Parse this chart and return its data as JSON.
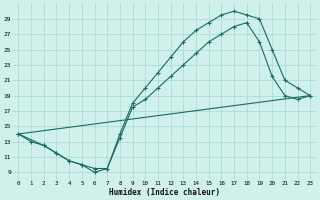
{
  "xlabel": "Humidex (Indice chaleur)",
  "bg_color": "#cff0eb",
  "grid_color": "#a8d8d0",
  "line_color": "#1a6b60",
  "xlim": [
    -0.5,
    23.5
  ],
  "ylim": [
    8.0,
    31.0
  ],
  "xticks": [
    0,
    1,
    2,
    3,
    4,
    5,
    6,
    7,
    8,
    9,
    10,
    11,
    12,
    13,
    14,
    15,
    16,
    17,
    18,
    19,
    20,
    21,
    22,
    23
  ],
  "yticks": [
    9,
    11,
    13,
    15,
    17,
    19,
    21,
    23,
    25,
    27,
    29
  ],
  "line1_x": [
    0,
    1,
    2,
    3,
    4,
    5,
    6,
    7,
    8,
    9,
    10,
    11,
    12,
    13,
    14,
    15,
    16,
    17,
    18,
    19,
    20,
    21,
    22,
    23
  ],
  "line1_y": [
    14,
    13,
    12.5,
    11.5,
    10.5,
    10,
    9,
    9.5,
    14,
    18,
    20,
    22,
    24,
    26,
    27.5,
    28.5,
    29.5,
    30,
    29.5,
    29,
    25,
    21,
    20,
    19
  ],
  "line2_x": [
    0,
    2,
    3,
    4,
    5,
    6,
    7,
    8,
    9,
    10,
    11,
    12,
    13,
    14,
    15,
    16,
    17,
    18,
    19,
    20,
    21,
    22,
    23
  ],
  "line2_y": [
    14,
    12.5,
    11.5,
    10.5,
    10,
    9.5,
    9.5,
    13.5,
    17.5,
    18.5,
    20,
    21.5,
    23,
    24.5,
    26,
    27,
    28,
    28.5,
    26,
    21.5,
    19,
    18.5,
    19
  ],
  "line3_x": [
    0,
    23
  ],
  "line3_y": [
    14,
    19
  ]
}
